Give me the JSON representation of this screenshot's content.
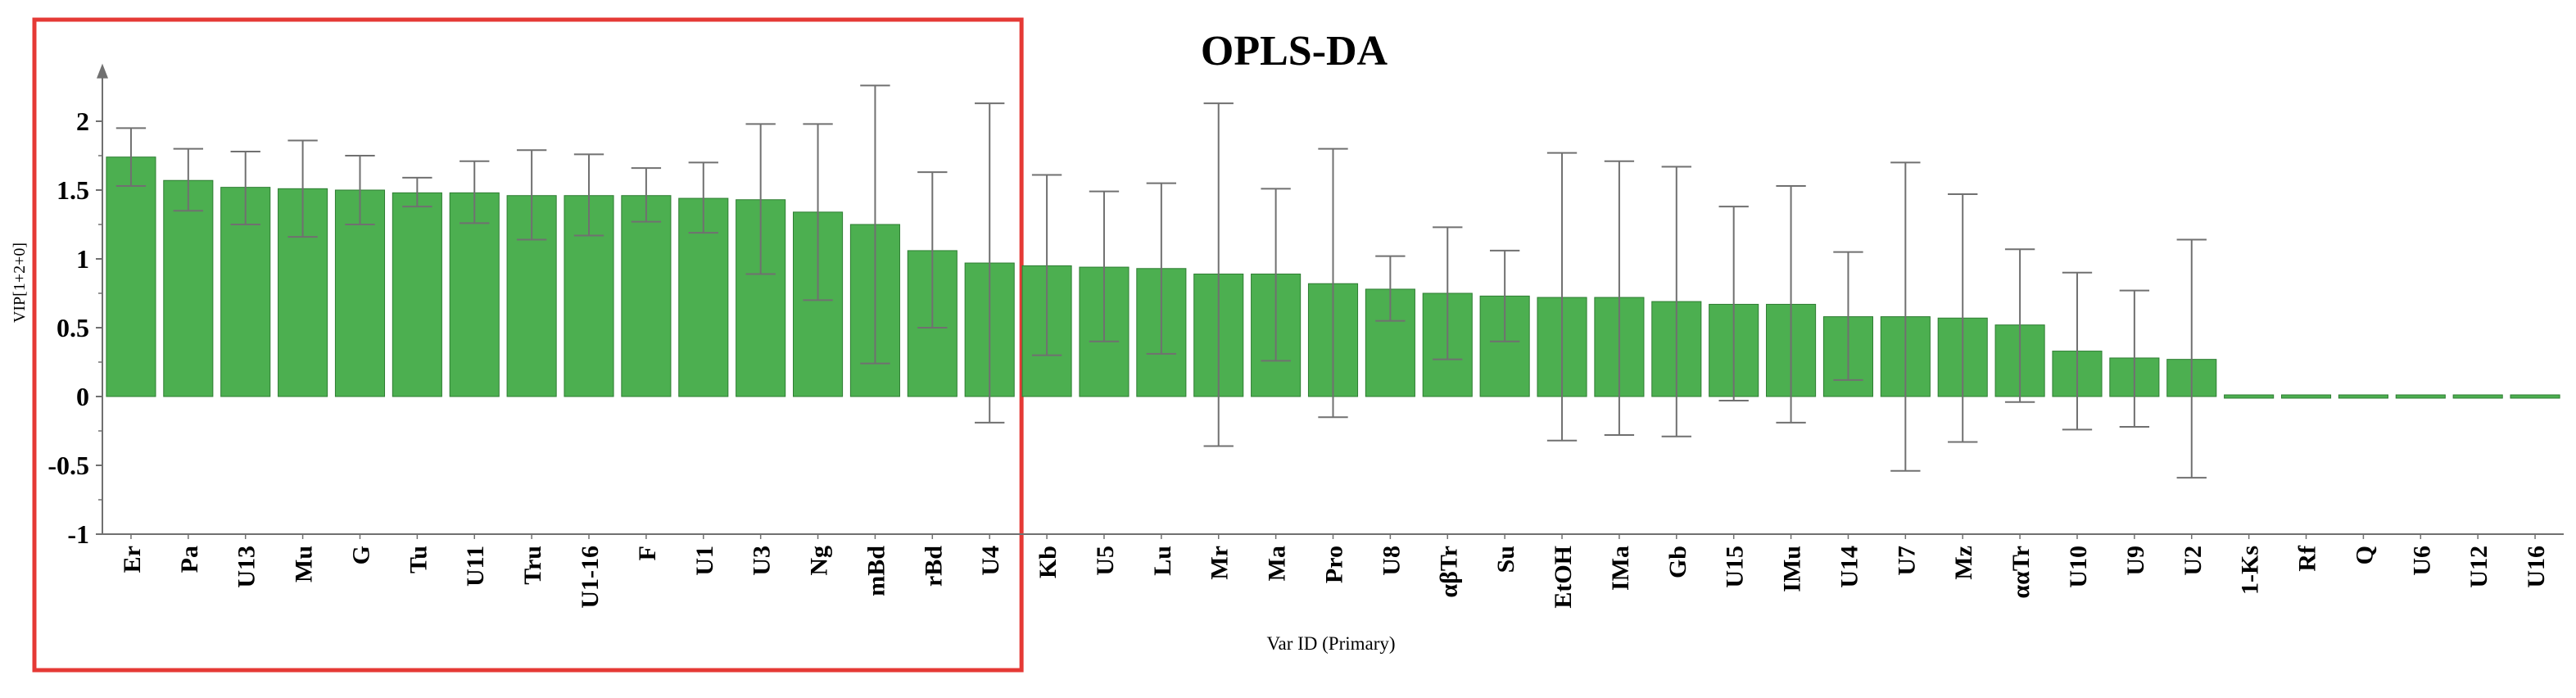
{
  "chart_data": {
    "type": "bar",
    "title": "OPLS-DA",
    "xlabel": "Var ID (Primary)",
    "ylabel": "VIP[1+2+0]",
    "ylim": [
      -1,
      2.3
    ],
    "yticks": [
      -1,
      -0.5,
      0,
      0.5,
      1,
      1.5,
      2
    ],
    "ytick_labels": [
      "-1",
      "-0.5",
      "0",
      "0.5",
      "1",
      "1.5",
      "2"
    ],
    "grid": false,
    "bar_color": "#4caf50",
    "bar_edge_color": "#2e7d32",
    "errorbar_color": "#707070",
    "highlight_box_color": "#e53935",
    "highlight_first_n": 16,
    "categories": [
      "Er",
      "Pa",
      "U13",
      "Mu",
      "G",
      "Tu",
      "U11",
      "Tru",
      "U1-16",
      "F",
      "U1",
      "U3",
      "Ng",
      "mBd",
      "rBd",
      "U4",
      "Kb",
      "U5",
      "Lu",
      "Mr",
      "Ma",
      "Pro",
      "U8",
      "αβTr",
      "Su",
      "EtOH",
      "IMa",
      "Gb",
      "U15",
      "IMu",
      "U14",
      "U7",
      "Mz",
      "ααTr",
      "U10",
      "U9",
      "U2",
      "1-Ks",
      "Rf",
      "Q",
      "U6",
      "U12",
      "U16"
    ],
    "series": [
      {
        "name": "VIP",
        "values": [
          1.74,
          1.57,
          1.52,
          1.51,
          1.5,
          1.48,
          1.48,
          1.46,
          1.46,
          1.46,
          1.44,
          1.43,
          1.34,
          1.25,
          1.06,
          0.97,
          0.95,
          0.94,
          0.93,
          0.89,
          0.89,
          0.82,
          0.78,
          0.75,
          0.73,
          0.72,
          0.72,
          0.69,
          0.67,
          0.67,
          0.58,
          0.58,
          0.57,
          0.52,
          0.33,
          0.28,
          0.27,
          0.01,
          0.01,
          0.01,
          0.01,
          0.01,
          0.01
        ],
        "error_low": [
          1.53,
          1.35,
          1.25,
          1.16,
          1.25,
          1.38,
          1.26,
          1.14,
          1.17,
          1.27,
          1.19,
          0.89,
          0.7,
          0.24,
          0.5,
          -0.19,
          0.3,
          0.4,
          0.31,
          -0.36,
          0.26,
          -0.15,
          0.55,
          0.27,
          0.4,
          -0.32,
          -0.28,
          -0.29,
          -0.03,
          -0.19,
          0.12,
          -0.54,
          -0.33,
          -0.04,
          -0.24,
          -0.22,
          -0.59,
          0.01,
          0.01,
          0.01,
          0.01,
          0.01,
          0.01
        ],
        "error_high": [
          1.95,
          1.8,
          1.78,
          1.86,
          1.75,
          1.59,
          1.71,
          1.79,
          1.76,
          1.66,
          1.7,
          1.98,
          1.98,
          2.26,
          1.63,
          2.13,
          1.61,
          1.49,
          1.55,
          2.13,
          1.51,
          1.8,
          1.02,
          1.23,
          1.06,
          1.77,
          1.71,
          1.67,
          1.38,
          1.53,
          1.05,
          1.7,
          1.47,
          1.07,
          0.9,
          0.77,
          1.14,
          0.01,
          0.01,
          0.01,
          0.01,
          0.01,
          0.01
        ]
      }
    ]
  }
}
